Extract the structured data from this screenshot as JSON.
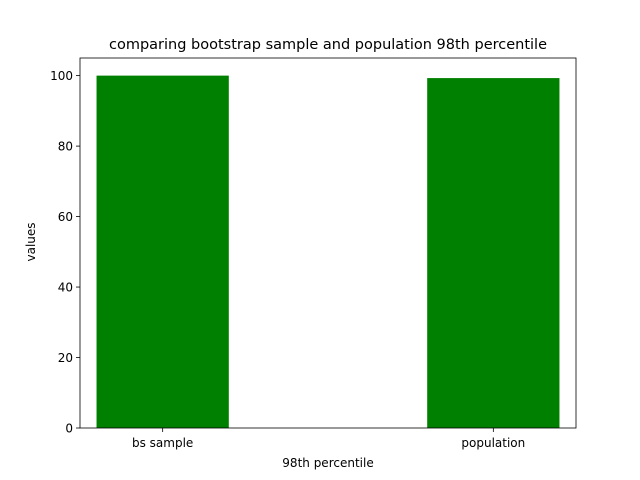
{
  "chart_data": {
    "type": "bar",
    "title": "comparing bootstrap sample and population 98th percentile",
    "xlabel": "98th percentile",
    "ylabel": "values",
    "categories": [
      "bs sample",
      "population"
    ],
    "values": [
      100.0,
      99.3
    ],
    "ylim": [
      0,
      105
    ],
    "yticks": [
      0,
      20,
      40,
      60,
      80,
      100
    ],
    "bar_color": "#008000",
    "grid": false,
    "legend": "none"
  }
}
